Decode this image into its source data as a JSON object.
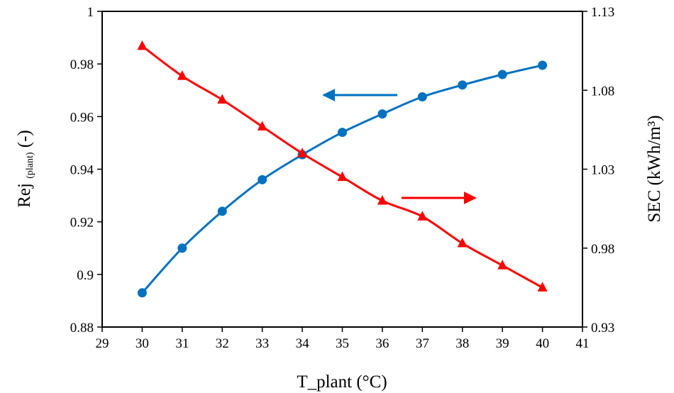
{
  "chart_data": {
    "type": "line",
    "x": [
      30,
      31,
      32,
      33,
      34,
      35,
      36,
      37,
      38,
      39,
      40
    ],
    "xlim": [
      29,
      41
    ],
    "x_ticks": [
      "29",
      "30",
      "31",
      "32",
      "33",
      "34",
      "35",
      "36",
      "37",
      "38",
      "39",
      "40",
      "41"
    ],
    "xlabel": "T_plant (°C)",
    "ylabel_left": {
      "main": "Rej ",
      "sub": "(plant)",
      "suffix": " (-)"
    },
    "ylim_left": [
      0.88,
      1.0
    ],
    "y_ticks_left": [
      "0.88",
      "0.9",
      "0.92",
      "0.94",
      "0.96",
      "0.98",
      "1"
    ],
    "ylabel_right": "SEC (kWh/m³)",
    "ylim_right": [
      0.93,
      1.13
    ],
    "y_ticks_right": [
      "0.93",
      "0.98",
      "1.03",
      "1.08",
      "1.13"
    ],
    "grid": false,
    "legend": "none",
    "series": [
      {
        "axis": "left",
        "color": "#0070C0",
        "marker": "circle",
        "values": [
          0.893,
          0.91,
          0.924,
          0.936,
          0.9455,
          0.954,
          0.961,
          0.9675,
          0.972,
          0.976,
          0.9795
        ]
      },
      {
        "axis": "right",
        "color": "#FF0000",
        "marker": "triangle",
        "values": [
          1.108,
          1.089,
          1.074,
          1.057,
          1.04,
          1.025,
          1.01,
          1.0,
          0.983,
          0.969,
          0.955
        ]
      }
    ],
    "annotations": [
      {
        "type": "arrow",
        "direction": "left",
        "color": "#0070C0",
        "target_series": 0
      },
      {
        "type": "arrow",
        "direction": "right",
        "color": "#FF0000",
        "target_series": 1
      }
    ]
  }
}
